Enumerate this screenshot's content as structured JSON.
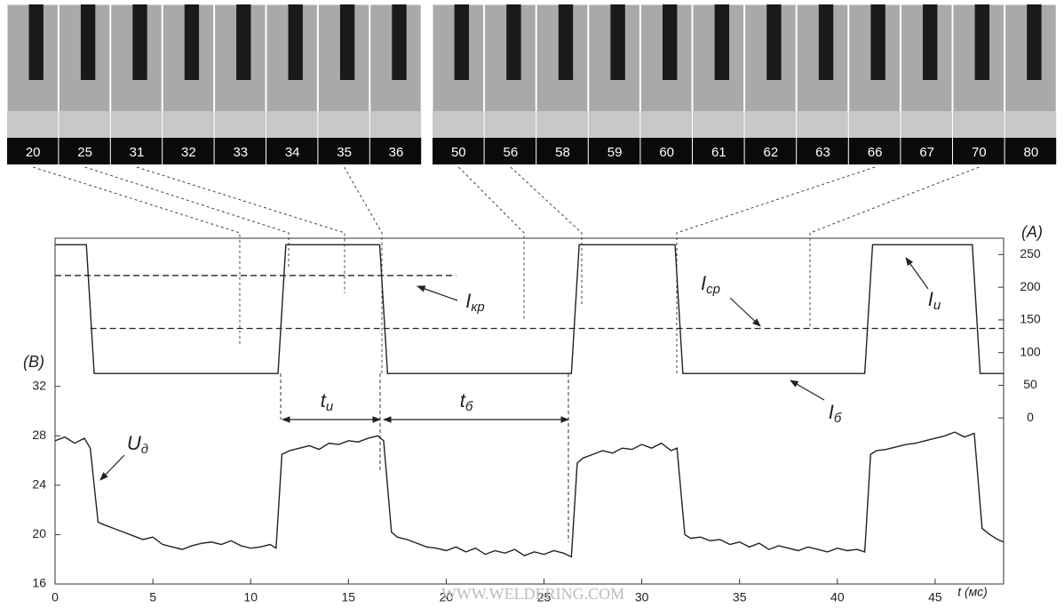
{
  "frames": [
    20,
    25,
    31,
    32,
    33,
    34,
    35,
    36,
    50,
    56,
    58,
    59,
    60,
    61,
    62,
    63,
    66,
    67,
    70,
    80
  ],
  "watermark": "WWW.WELDERING.COM",
  "chart_data": {
    "type": "line",
    "x_label": "t (мс)",
    "y_label": "(B)",
    "y2_label": "(A)",
    "xlim": [
      0,
      48.5
    ],
    "xticks": [
      0,
      5,
      10,
      15,
      20,
      25,
      30,
      35,
      40,
      45
    ],
    "ylim": [
      16,
      44
    ],
    "yticks": [
      16,
      20,
      24,
      28,
      32
    ],
    "y2lim": [
      -254,
      275
    ],
    "y2ticks": [
      0,
      50,
      100,
      150,
      200,
      250
    ],
    "series": [
      {
        "axis": "y",
        "color": "#222222",
        "x": [
          0,
          0.5,
          1,
          1.5,
          1.8,
          2.2,
          2.5,
          3,
          3.5,
          4,
          4.5,
          5,
          5.5,
          6,
          6.5,
          7,
          7.5,
          8,
          8.5,
          9,
          9.5,
          10,
          10.5,
          11,
          11.3,
          11.6,
          12,
          12.5,
          13,
          13.5,
          14,
          14.5,
          15,
          15.5,
          16,
          16.5,
          16.8,
          17.2,
          17.5,
          18,
          18.5,
          19,
          19.5,
          20,
          20.5,
          21,
          21.5,
          22,
          22.5,
          23,
          23.5,
          24,
          24.5,
          25,
          25.5,
          26,
          26.4,
          26.7,
          27,
          27.5,
          28,
          28.5,
          29,
          29.5,
          30,
          30.5,
          31,
          31.5,
          31.8,
          32.2,
          32.5,
          33,
          33.5,
          34,
          34.5,
          35,
          35.5,
          36,
          36.5,
          37,
          37.5,
          38,
          38.5,
          39,
          39.5,
          40,
          40.5,
          41,
          41.4,
          41.7,
          42,
          42.5,
          43,
          43.5,
          44,
          44.5,
          45,
          45.5,
          46,
          46.5,
          47,
          47.4,
          47.8,
          48.2,
          48.5
        ],
        "values": [
          27.6,
          27.9,
          27.4,
          27.8,
          27.0,
          21.0,
          20.8,
          20.5,
          20.2,
          19.9,
          19.6,
          19.8,
          19.2,
          19.0,
          18.8,
          19.1,
          19.3,
          19.4,
          19.2,
          19.5,
          19.1,
          18.9,
          19.0,
          19.2,
          18.9,
          26.5,
          26.8,
          27.0,
          27.2,
          26.9,
          27.4,
          27.3,
          27.6,
          27.5,
          27.8,
          28.0,
          27.6,
          20.2,
          19.8,
          19.6,
          19.3,
          19.0,
          18.9,
          18.7,
          19.0,
          18.6,
          18.9,
          18.4,
          18.7,
          18.5,
          18.8,
          18.3,
          18.6,
          18.4,
          18.7,
          18.5,
          18.2,
          25.8,
          26.2,
          26.5,
          26.8,
          26.6,
          27.0,
          26.9,
          27.3,
          27.0,
          27.4,
          26.8,
          27.0,
          20.0,
          19.7,
          19.8,
          19.5,
          19.6,
          19.2,
          19.4,
          19.0,
          19.3,
          18.8,
          19.1,
          18.9,
          18.7,
          19.0,
          18.8,
          18.6,
          18.9,
          18.7,
          18.8,
          18.6,
          26.5,
          26.8,
          26.9,
          27.1,
          27.3,
          27.4,
          27.6,
          27.8,
          28.0,
          28.3,
          27.9,
          28.2,
          20.5,
          20.0,
          19.6,
          19.4
        ]
      },
      {
        "axis": "y2",
        "color": "#222222",
        "x": [
          0,
          1.6,
          2.0,
          11.4,
          11.8,
          16.6,
          17.0,
          26.4,
          26.8,
          31.7,
          32.1,
          41.4,
          41.8,
          46.9,
          47.3,
          48.5
        ],
        "values": [
          265,
          265,
          68,
          68,
          265,
          265,
          68,
          68,
          265,
          265,
          68,
          68,
          265,
          265,
          68,
          68
        ]
      }
    ],
    "reference_lines": [
      {
        "axis": "y2",
        "value": 218,
        "x": [
          0,
          20.5
        ]
      },
      {
        "axis": "y2",
        "value": 137,
        "x": [
          1.8,
          48.5
        ]
      }
    ],
    "annotations": [
      {
        "text": "I",
        "sub": "кр"
      },
      {
        "text": "I",
        "sub": "ср"
      },
      {
        "text": "I",
        "sub": "и"
      },
      {
        "text": "I",
        "sub": "б"
      },
      {
        "text": "U",
        "sub": "д"
      },
      {
        "text": "t",
        "sub": "и"
      },
      {
        "text": "t",
        "sub": "б"
      }
    ]
  }
}
